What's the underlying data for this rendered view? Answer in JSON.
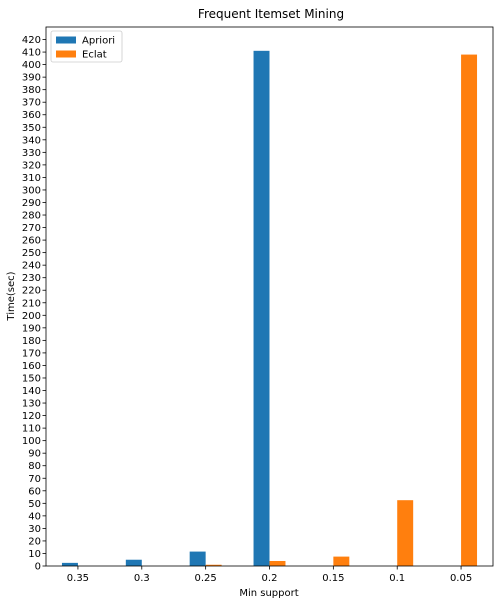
{
  "chart_data": {
    "type": "bar",
    "title": "Frequent Itemset Mining",
    "xlabel": "Min support",
    "ylabel": "Time(sec)",
    "categories": [
      "0.35",
      "0.3",
      "0.25",
      "0.2",
      "0.15",
      "0.1",
      "0.05"
    ],
    "series": [
      {
        "name": "Apriori",
        "color": "#1f77b4",
        "values": [
          2.5,
          5,
          11.5,
          411,
          0,
          0,
          0
        ]
      },
      {
        "name": "Eclat",
        "color": "#ff7f0e",
        "values": [
          0,
          0,
          1,
          4,
          7.5,
          52.5,
          408
        ]
      }
    ],
    "ylim": [
      0,
      430
    ],
    "yticks": [
      0,
      10,
      20,
      30,
      40,
      50,
      60,
      70,
      80,
      90,
      100,
      110,
      120,
      130,
      140,
      150,
      160,
      170,
      180,
      190,
      200,
      210,
      220,
      230,
      240,
      250,
      260,
      270,
      280,
      290,
      300,
      310,
      320,
      330,
      340,
      350,
      360,
      370,
      380,
      390,
      400,
      410,
      420
    ],
    "grid": false,
    "legend_position": "top-left"
  }
}
